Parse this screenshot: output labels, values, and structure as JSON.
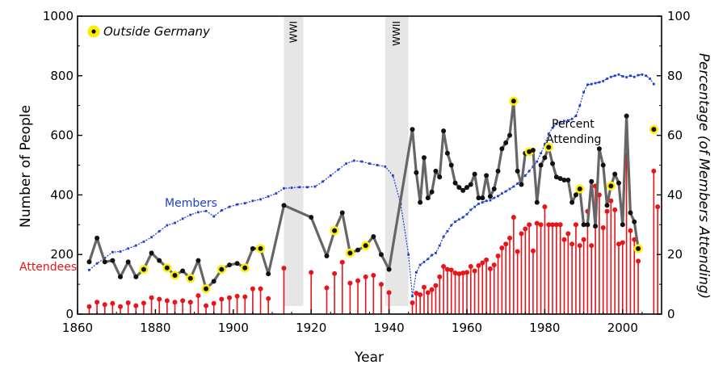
{
  "chart_data": {
    "type": "line",
    "xlabel": "Year",
    "ylabel_left": "Number of People",
    "ylabel_right": "Percentage (of Members Attending)",
    "xlim": [
      1860,
      2010
    ],
    "ylim_left": [
      0,
      1000
    ],
    "ylim_right": [
      0,
      100
    ],
    "x_ticks": [
      "1860",
      "1880",
      "1900",
      "1920",
      "1940",
      "1960",
      "1980",
      "2000"
    ],
    "y_ticks_left": [
      "0",
      "200",
      "400",
      "600",
      "800",
      "1000"
    ],
    "y_ticks_right": [
      "0",
      "20",
      "40",
      "60",
      "80",
      "100"
    ],
    "grid": false,
    "legend": {
      "label": "Outside Germany",
      "placement": "top-left",
      "highlight_color": "#ffee00"
    },
    "shaded_periods": [
      {
        "label": "WWI",
        "start": 1913,
        "end": 1918
      },
      {
        "label": "WWII",
        "start": 1939,
        "end": 1945
      }
    ],
    "annotations": {
      "members": "Members",
      "percent_line1": "Percent",
      "percent_line2": "Attending",
      "attendees": "Attendees"
    },
    "colors": {
      "members": "#1a3fd0",
      "attendees": "#e8141a",
      "percent_line": "#666666",
      "percent_marker": "#111111",
      "highlight": "#ffee00",
      "war_band": "#e6e6e6"
    },
    "series": [
      {
        "name": "Members",
        "axis": "left",
        "points": [
          [
            1863,
            148
          ],
          [
            1865,
            170
          ],
          [
            1867,
            188
          ],
          [
            1869,
            208
          ],
          [
            1871,
            210
          ],
          [
            1873,
            220
          ],
          [
            1875,
            230
          ],
          [
            1877,
            243
          ],
          [
            1879,
            258
          ],
          [
            1881,
            278
          ],
          [
            1883,
            298
          ],
          [
            1885,
            306
          ],
          [
            1887,
            320
          ],
          [
            1889,
            333
          ],
          [
            1891,
            342
          ],
          [
            1893,
            346
          ],
          [
            1895,
            328
          ],
          [
            1897,
            348
          ],
          [
            1899,
            360
          ],
          [
            1901,
            368
          ],
          [
            1903,
            372
          ],
          [
            1905,
            380
          ],
          [
            1907,
            385
          ],
          [
            1909,
            395
          ],
          [
            1911,
            405
          ],
          [
            1913,
            422
          ],
          [
            1915,
            424
          ],
          [
            1917,
            426
          ],
          [
            1919,
            426
          ],
          [
            1921,
            428
          ],
          [
            1923,
            445
          ],
          [
            1925,
            465
          ],
          [
            1927,
            485
          ],
          [
            1929,
            505
          ],
          [
            1931,
            515
          ],
          [
            1933,
            512
          ],
          [
            1935,
            505
          ],
          [
            1937,
            500
          ],
          [
            1939,
            495
          ],
          [
            1941,
            465
          ],
          [
            1943,
            370
          ],
          [
            1945,
            200
          ],
          [
            1946,
            60
          ],
          [
            1947,
            140
          ],
          [
            1948,
            165
          ],
          [
            1949,
            175
          ],
          [
            1950,
            185
          ],
          [
            1951,
            198
          ],
          [
            1952,
            205
          ],
          [
            1953,
            230
          ],
          [
            1954,
            260
          ],
          [
            1955,
            278
          ],
          [
            1956,
            298
          ],
          [
            1957,
            310
          ],
          [
            1958,
            318
          ],
          [
            1959,
            325
          ],
          [
            1960,
            335
          ],
          [
            1961,
            350
          ],
          [
            1962,
            360
          ],
          [
            1963,
            370
          ],
          [
            1964,
            375
          ],
          [
            1965,
            380
          ],
          [
            1966,
            382
          ],
          [
            1967,
            390
          ],
          [
            1968,
            396
          ],
          [
            1969,
            405
          ],
          [
            1970,
            412
          ],
          [
            1971,
            420
          ],
          [
            1972,
            428
          ],
          [
            1973,
            438
          ],
          [
            1974,
            450
          ],
          [
            1975,
            465
          ],
          [
            1976,
            480
          ],
          [
            1977,
            495
          ],
          [
            1978,
            512
          ],
          [
            1979,
            540
          ],
          [
            1980,
            570
          ],
          [
            1981,
            605
          ],
          [
            1982,
            625
          ],
          [
            1983,
            638
          ],
          [
            1984,
            645
          ],
          [
            1985,
            648
          ],
          [
            1986,
            650
          ],
          [
            1987,
            655
          ],
          [
            1988,
            665
          ],
          [
            1989,
            700
          ],
          [
            1990,
            745
          ],
          [
            1991,
            770
          ],
          [
            1992,
            772
          ],
          [
            1993,
            775
          ],
          [
            1994,
            778
          ],
          [
            1995,
            782
          ],
          [
            1996,
            790
          ],
          [
            1997,
            796
          ],
          [
            1998,
            800
          ],
          [
            1999,
            804
          ],
          [
            2000,
            798
          ],
          [
            2001,
            795
          ],
          [
            2002,
            800
          ],
          [
            2003,
            796
          ],
          [
            2004,
            802
          ],
          [
            2005,
            804
          ],
          [
            2006,
            800
          ],
          [
            2007,
            790
          ],
          [
            2008,
            772
          ]
        ]
      },
      {
        "name": "Percent Attending",
        "axis": "right",
        "points": [
          [
            1863,
            17.5
          ],
          [
            1865,
            25.5
          ],
          [
            1867,
            17.5
          ],
          [
            1869,
            18
          ],
          [
            1871,
            12.5
          ],
          [
            1873,
            17.5
          ],
          [
            1875,
            12.5
          ],
          [
            1877,
            15
          ],
          [
            1879,
            20.5
          ],
          [
            1881,
            18
          ],
          [
            1883,
            15.5
          ],
          [
            1885,
            13
          ],
          [
            1887,
            14.5
          ],
          [
            1889,
            12
          ],
          [
            1891,
            18
          ],
          [
            1893,
            8.5
          ],
          [
            1895,
            11
          ],
          [
            1897,
            15
          ],
          [
            1899,
            16.5
          ],
          [
            1901,
            17
          ],
          [
            1903,
            15.5
          ],
          [
            1905,
            22
          ],
          [
            1907,
            22
          ],
          [
            1909,
            13.5
          ],
          [
            1913,
            36.5
          ],
          [
            1920,
            32.5
          ],
          [
            1924,
            19.5
          ],
          [
            1926,
            28
          ],
          [
            1928,
            34
          ],
          [
            1930,
            20.5
          ],
          [
            1932,
            21.5
          ],
          [
            1934,
            23
          ],
          [
            1936,
            26
          ],
          [
            1938,
            20
          ],
          [
            1940,
            15
          ],
          [
            1946,
            62
          ],
          [
            1947,
            47.5
          ],
          [
            1948,
            37.5
          ],
          [
            1949,
            52.5
          ],
          [
            1950,
            39
          ],
          [
            1951,
            41
          ],
          [
            1952,
            48
          ],
          [
            1953,
            46
          ],
          [
            1954,
            61.5
          ],
          [
            1955,
            54
          ],
          [
            1956,
            50
          ],
          [
            1957,
            44
          ],
          [
            1958,
            42.5
          ],
          [
            1959,
            41.5
          ],
          [
            1960,
            42.5
          ],
          [
            1961,
            43.5
          ],
          [
            1962,
            47
          ],
          [
            1963,
            39
          ],
          [
            1964,
            39
          ],
          [
            1965,
            46.5
          ],
          [
            1966,
            39.5
          ],
          [
            1967,
            42
          ],
          [
            1968,
            48
          ],
          [
            1969,
            55.5
          ],
          [
            1970,
            57.5
          ],
          [
            1971,
            60
          ],
          [
            1972,
            71.5
          ],
          [
            1973,
            48
          ],
          [
            1974,
            43.5
          ],
          [
            1975,
            54
          ],
          [
            1976,
            54.5
          ],
          [
            1977,
            55
          ],
          [
            1978,
            37.5
          ],
          [
            1979,
            50
          ],
          [
            1980,
            52.5
          ],
          [
            1981,
            56
          ],
          [
            1982,
            50.5
          ],
          [
            1983,
            46
          ],
          [
            1984,
            45.5
          ],
          [
            1985,
            45
          ],
          [
            1986,
            45
          ],
          [
            1987,
            37.5
          ],
          [
            1988,
            40
          ],
          [
            1989,
            42
          ],
          [
            1990,
            30
          ],
          [
            1991,
            30
          ],
          [
            1992,
            44.5
          ],
          [
            1993,
            29.5
          ],
          [
            1994,
            55.5
          ],
          [
            1995,
            50
          ],
          [
            1996,
            36.5
          ],
          [
            1997,
            43
          ],
          [
            1998,
            47
          ],
          [
            1999,
            44
          ],
          [
            2000,
            30
          ],
          [
            2001,
            66.5
          ],
          [
            2002,
            34
          ],
          [
            2003,
            31
          ],
          [
            2004,
            22
          ],
          [
            2008,
            62
          ]
        ]
      },
      {
        "name": "Attendees",
        "axis": "left",
        "points": [
          [
            1863,
            25
          ],
          [
            1865,
            40
          ],
          [
            1867,
            32
          ],
          [
            1869,
            36
          ],
          [
            1871,
            25
          ],
          [
            1873,
            38
          ],
          [
            1875,
            28
          ],
          [
            1877,
            37
          ],
          [
            1879,
            55
          ],
          [
            1881,
            50
          ],
          [
            1883,
            45
          ],
          [
            1885,
            40
          ],
          [
            1887,
            45
          ],
          [
            1889,
            40
          ],
          [
            1891,
            62
          ],
          [
            1893,
            28
          ],
          [
            1895,
            36
          ],
          [
            1897,
            50
          ],
          [
            1899,
            55
          ],
          [
            1901,
            60
          ],
          [
            1903,
            58
          ],
          [
            1905,
            85
          ],
          [
            1907,
            85
          ],
          [
            1909,
            52
          ],
          [
            1913,
            154
          ],
          [
            1920,
            140
          ],
          [
            1924,
            88
          ],
          [
            1926,
            136
          ],
          [
            1928,
            174
          ],
          [
            1930,
            104
          ],
          [
            1932,
            112
          ],
          [
            1934,
            125
          ],
          [
            1936,
            130
          ],
          [
            1938,
            100
          ],
          [
            1940,
            72
          ],
          [
            1946,
            38
          ],
          [
            1947,
            70
          ],
          [
            1948,
            65
          ],
          [
            1949,
            90
          ],
          [
            1950,
            72
          ],
          [
            1951,
            82
          ],
          [
            1952,
            96
          ],
          [
            1953,
            125
          ],
          [
            1954,
            160
          ],
          [
            1955,
            150
          ],
          [
            1956,
            148
          ],
          [
            1957,
            138
          ],
          [
            1958,
            135
          ],
          [
            1959,
            138
          ],
          [
            1960,
            140
          ],
          [
            1961,
            160
          ],
          [
            1962,
            145
          ],
          [
            1963,
            163
          ],
          [
            1964,
            172
          ],
          [
            1965,
            182
          ],
          [
            1966,
            152
          ],
          [
            1967,
            165
          ],
          [
            1968,
            195
          ],
          [
            1969,
            222
          ],
          [
            1970,
            235
          ],
          [
            1971,
            255
          ],
          [
            1972,
            325
          ],
          [
            1973,
            210
          ],
          [
            1974,
            270
          ],
          [
            1975,
            286
          ],
          [
            1976,
            300
          ],
          [
            1977,
            212
          ],
          [
            1978,
            305
          ],
          [
            1979,
            300
          ],
          [
            1980,
            360
          ],
          [
            1981,
            300
          ],
          [
            1982,
            300
          ],
          [
            1983,
            300
          ],
          [
            1984,
            300
          ],
          [
            1985,
            250
          ],
          [
            1986,
            270
          ],
          [
            1987,
            235
          ],
          [
            1988,
            300
          ],
          [
            1989,
            230
          ],
          [
            1990,
            250
          ],
          [
            1991,
            345
          ],
          [
            1992,
            230
          ],
          [
            1993,
            430
          ],
          [
            1994,
            400
          ],
          [
            1995,
            290
          ],
          [
            1996,
            345
          ],
          [
            1997,
            380
          ],
          [
            1998,
            350
          ],
          [
            1999,
            235
          ],
          [
            2000,
            240
          ],
          [
            2001,
            535
          ],
          [
            2002,
            280
          ],
          [
            2003,
            250
          ],
          [
            2004,
            178
          ],
          [
            2008,
            480
          ],
          [
            2009,
            360
          ]
        ]
      }
    ],
    "outside_germany_years": [
      1877,
      1883,
      1885,
      1889,
      1893,
      1897,
      1903,
      1907,
      1926,
      1930,
      1934,
      1972,
      1976,
      1981,
      1989,
      1997,
      2004,
      2008
    ]
  }
}
